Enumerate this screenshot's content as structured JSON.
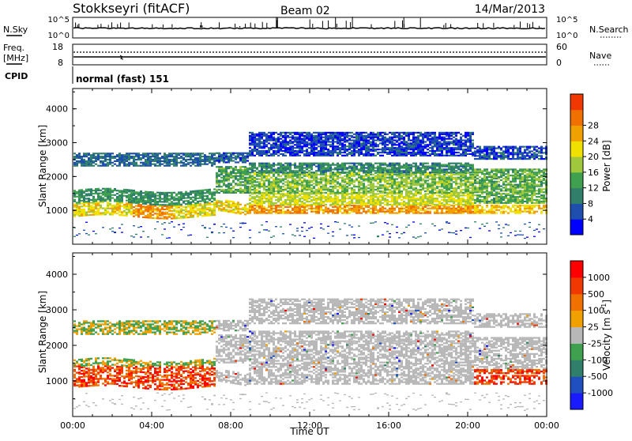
{
  "header": {
    "station": "Stokkseyri (fitACF)",
    "beam": "Beam 02",
    "date": "14/Mar/2013"
  },
  "left_labels": {
    "nsky": "N.Sky",
    "freq": "Freq.",
    "freq_unit": "[MHz]",
    "cpid": "CPID"
  },
  "right_labels": {
    "nsearch": "N.Search",
    "nave": "Nave"
  },
  "ticks": {
    "noise_top": "10^5",
    "noise_bottom": "10^0",
    "freq_top": "18",
    "freq_bottom": "8",
    "nave_top": "60",
    "nave_bottom": "0"
  },
  "cpid_text": "normal (fast) 151",
  "colors": {
    "power": [
      "#0000ff",
      "#1f4fae",
      "#2f7f6a",
      "#3fa050",
      "#a0c83c",
      "#f0e000",
      "#f0a000",
      "#f07000",
      "#f03800",
      "#ff0000"
    ],
    "velocity": [
      "#1a1aff",
      "#2050c0",
      "#2f7f6a",
      "#3fa050",
      "#b8b8b8",
      "#f0a000",
      "#f07000",
      "#f03800",
      "#ff0000"
    ]
  },
  "chart_data": [
    {
      "type": "heatmap",
      "name": "power",
      "ylabel": "Slant Range [km]",
      "ylim": [
        0,
        4600
      ],
      "yticks": [
        1000,
        2000,
        3000,
        4000
      ],
      "xlim": [
        0,
        24
      ],
      "xtick_labels": [
        "00:00",
        "04:00",
        "08:00",
        "12:00",
        "16:00",
        "20:00",
        "00:00"
      ],
      "colorbar": {
        "label": "Power [dB]",
        "ticks": [
          "4",
          "8",
          "12",
          "16",
          "20",
          "24",
          "28"
        ]
      }
    },
    {
      "type": "heatmap",
      "name": "velocity",
      "ylabel": "Slant Range [km]",
      "xlabel": "Time UT",
      "ylim": [
        0,
        4600
      ],
      "yticks": [
        1000,
        2000,
        3000,
        4000
      ],
      "xlim": [
        0,
        24
      ],
      "xtick_labels": [
        "00:00",
        "04:00",
        "08:00",
        "12:00",
        "16:00",
        "20:00",
        "00:00"
      ],
      "colorbar": {
        "label": "Velocity [m s",
        "label_sup": "-1",
        "label_end": "]",
        "ticks": [
          "1000",
          "500",
          "100",
          "25",
          "-25",
          "-100",
          "-500",
          "-1000"
        ]
      }
    }
  ]
}
